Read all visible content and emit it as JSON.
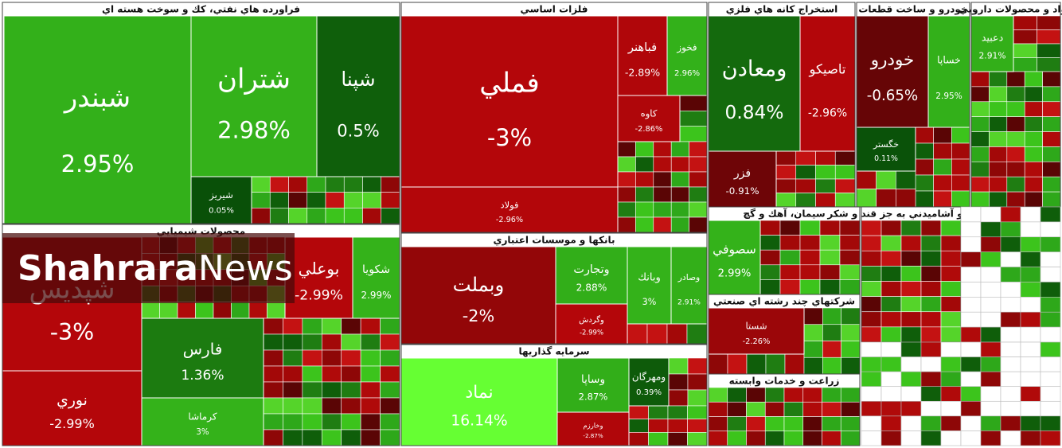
{
  "watermark": [
    "Shahrara",
    "News"
  ],
  "sectors": [
    {
      "title": "فراورده هاي نفتي، كك و سوخت هسته اي",
      "tiles": [
        {
          "name": "شبندر",
          "change": "2.95%"
        },
        {
          "name": "شتران",
          "change": "2.98%"
        },
        {
          "name": "شپنا",
          "change": "0.5%"
        },
        {
          "name": "شيريز",
          "change": "0.05%"
        }
      ]
    },
    {
      "title": "فلزات اساسي",
      "tiles": [
        {
          "name": "فملي",
          "change": "-3%"
        },
        {
          "name": "فولاد",
          "change": "-2.96%"
        },
        {
          "name": "فباهنر",
          "change": "-2.89%"
        },
        {
          "name": "فخوز",
          "change": "2.96%"
        },
        {
          "name": "كاوه",
          "change": "-2.86%"
        }
      ]
    },
    {
      "title": "استخراج كانه هاي فلزي",
      "tiles": [
        {
          "name": "ومعادن",
          "change": "0.84%"
        },
        {
          "name": "تاصيكو",
          "change": "-2.96%"
        },
        {
          "name": "فزر",
          "change": "-0.91%"
        }
      ]
    },
    {
      "title": "خودرو و ساخت قطعات",
      "tiles": [
        {
          "name": "خودرو",
          "change": "-0.65%"
        },
        {
          "name": "خساپا",
          "change": "2.95%"
        },
        {
          "name": "خگستر",
          "change": "0.11%"
        }
      ]
    },
    {
      "title": "مواد و محصولات دارويي",
      "tiles": [
        {
          "name": "دعبيد",
          "change": "2.91%"
        }
      ]
    },
    {
      "title": "محصولات شيميايي",
      "tiles": [
        {
          "name": "شپديس",
          "change": "-3%"
        },
        {
          "name": "نوري",
          "change": "-2.99%"
        },
        {
          "name": "فارس",
          "change": "1.36%"
        },
        {
          "name": "كرماشا",
          "change": "3%"
        },
        {
          "name": "بوعلي",
          "change": "-2.99%"
        },
        {
          "name": "شكويا",
          "change": "2.99%"
        }
      ]
    },
    {
      "title": "بانكها و موسسات اعتباري",
      "tiles": [
        {
          "name": "وبملت",
          "change": "-2%"
        },
        {
          "name": "وتجارت",
          "change": "2.88%"
        },
        {
          "name": "وگردش",
          "change": "-2.99%"
        },
        {
          "name": "وبانك",
          "change": "3%"
        },
        {
          "name": "وصادر",
          "change": "2.91%"
        }
      ]
    },
    {
      "title": "سرمايه گذاريها",
      "tiles": [
        {
          "name": "نماد",
          "change": "16.14%"
        },
        {
          "name": "وساپا",
          "change": "2.87%"
        },
        {
          "name": "وخارزم",
          "change": "-2.87%"
        },
        {
          "name": "ومهرگان",
          "change": "0.39%"
        }
      ]
    },
    {
      "title": "سيمان، آهك و گچ",
      "tiles": [
        {
          "name": "سصوفي",
          "change": "2.99%"
        }
      ]
    },
    {
      "title": "شركتهاي چند رشته اي صنعتي",
      "tiles": [
        {
          "name": "شستا",
          "change": "-2.26%"
        }
      ]
    },
    {
      "title": "زراعت و خدمات وابسته",
      "tiles": []
    },
    {
      "title": "غذايي و آشاميدني به جز قند و شكر",
      "tiles": []
    }
  ]
}
